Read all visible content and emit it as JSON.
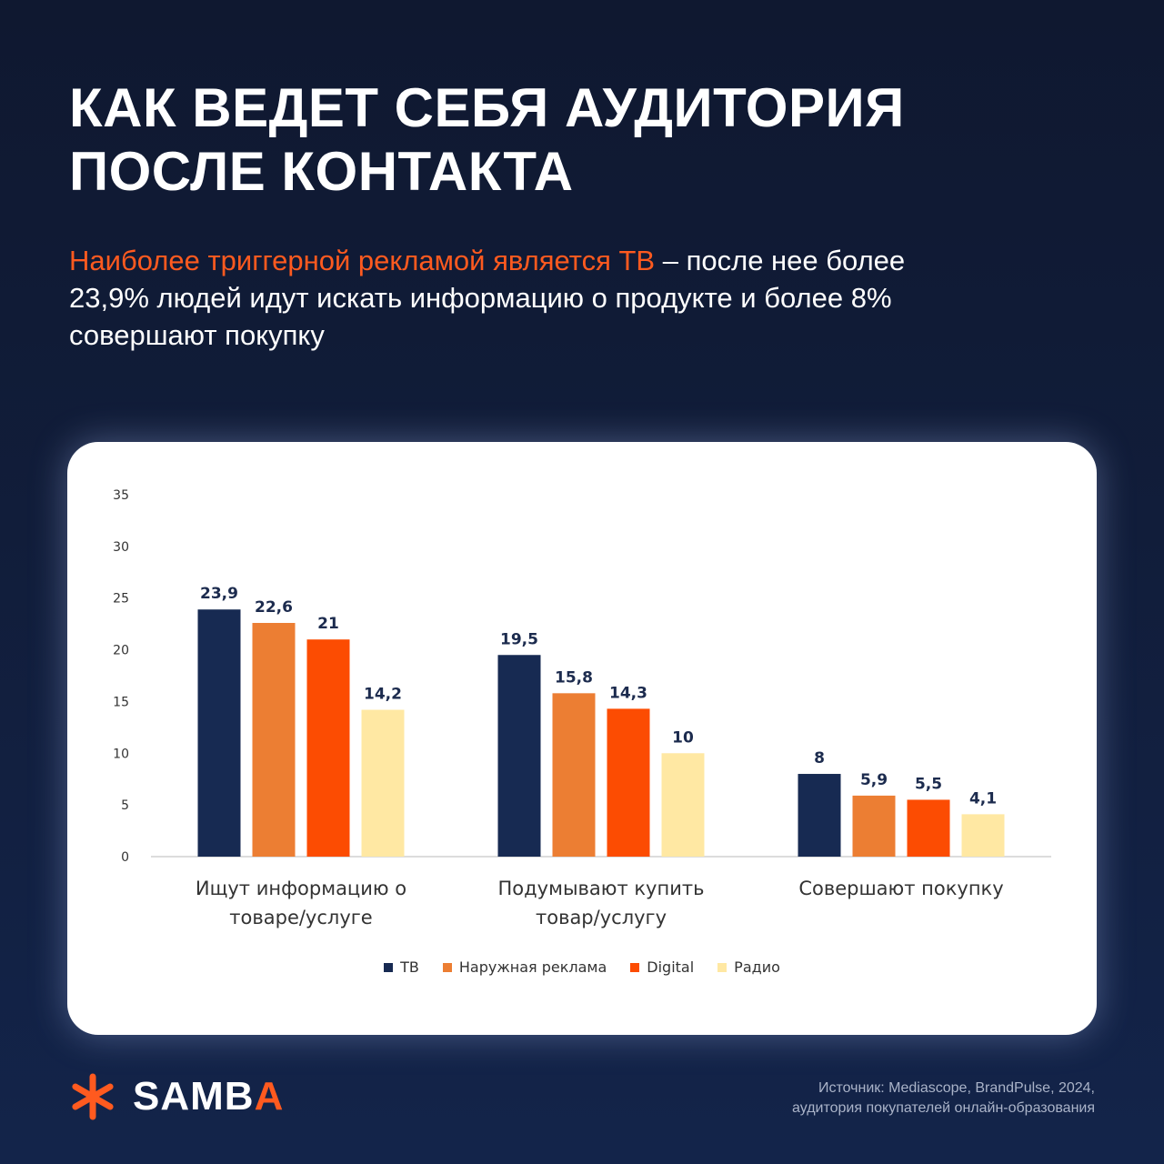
{
  "title": {
    "line1": "КАК ВЕДЕТ СЕБЯ АУДИТОРИЯ",
    "line2": "ПОСЛЕ КОНТАКТА"
  },
  "subtitle": {
    "accent": "Наиболее триггерной рекламой является ТВ",
    "rest": " – после нее более 23,9% людей идут искать информацию о продукте и более 8% совершают покупку"
  },
  "colors": {
    "accent": "#ff5a1f",
    "background": "#111d3a"
  },
  "chart_data": {
    "type": "bar",
    "categories": [
      "Ищут информацию о товаре/услуге",
      "Подумывают купить товар/услугу",
      "Совершают покупку"
    ],
    "category_lines": [
      [
        "Ищут информацию о",
        "товаре/услуге"
      ],
      [
        "Подумывают купить",
        "товар/услугу"
      ],
      [
        "Совершают покупку"
      ]
    ],
    "series": [
      {
        "name": "ТВ",
        "color": "#172a52",
        "values": [
          23.9,
          19.5,
          8
        ],
        "labels": [
          "23,9",
          "19,5",
          "8"
        ]
      },
      {
        "name": "Наружная реклама",
        "color": "#ec7e33",
        "values": [
          22.6,
          15.8,
          5.9
        ],
        "labels": [
          "22,6",
          "15,8",
          "5,9"
        ]
      },
      {
        "name": "Digital",
        "color": "#fc4c02",
        "values": [
          21,
          14.3,
          5.5
        ],
        "labels": [
          "21",
          "14,3",
          "5,5"
        ]
      },
      {
        "name": "Радио",
        "color": "#ffe8a3",
        "values": [
          14.2,
          10,
          4.1
        ],
        "labels": [
          "14,2",
          "10",
          "4,1"
        ]
      }
    ],
    "ylim": [
      0,
      35
    ],
    "yticks": [
      0,
      5,
      10,
      15,
      20,
      25,
      30,
      35
    ],
    "grid": false,
    "legend_position": "bottom",
    "xlabel": "",
    "ylabel": ""
  },
  "logo": {
    "main": "SAMB",
    "last": "A",
    "icon": "asterisk-icon"
  },
  "source": {
    "line1": "Источник: Mediascope, BrandPulse, 2024,",
    "line2": "аудитория покупателей онлайн-образования"
  }
}
